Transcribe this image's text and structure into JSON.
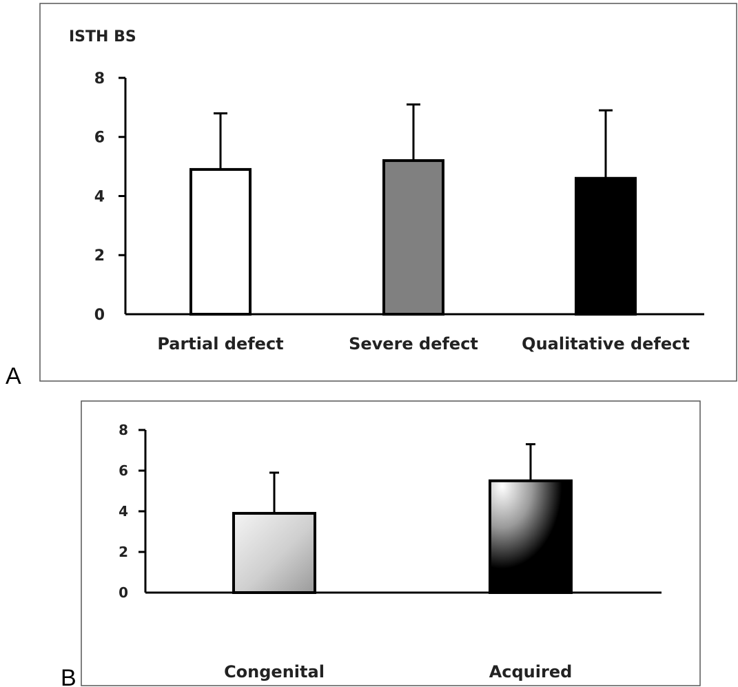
{
  "figure": {
    "panel_a_letter": "A",
    "panel_b_letter": "B"
  },
  "chart_data": [
    {
      "type": "bar",
      "ylabel": "ISTH BS",
      "categories": [
        "Partial defect",
        "Severe defect",
        "Qualitative defect"
      ],
      "values": [
        4.9,
        5.2,
        4.6
      ],
      "error_upper": [
        6.8,
        7.1,
        6.9
      ],
      "ylim": [
        0,
        8
      ],
      "yticks": [
        "0",
        "2",
        "4",
        "6",
        "8"
      ],
      "bar_fills": [
        "#ffffff",
        "#808080",
        "#000000"
      ],
      "grid": false
    },
    {
      "type": "bar",
      "categories": [
        "Congenital",
        "Acquired"
      ],
      "values": [
        3.9,
        5.5
      ],
      "error_upper": [
        5.9,
        7.3
      ],
      "ylim": [
        0,
        8
      ],
      "yticks": [
        "0",
        "2",
        "4",
        "6",
        "8"
      ],
      "bar_fills": [
        "gradient-light",
        "gradient-dark"
      ],
      "grid": false
    }
  ]
}
